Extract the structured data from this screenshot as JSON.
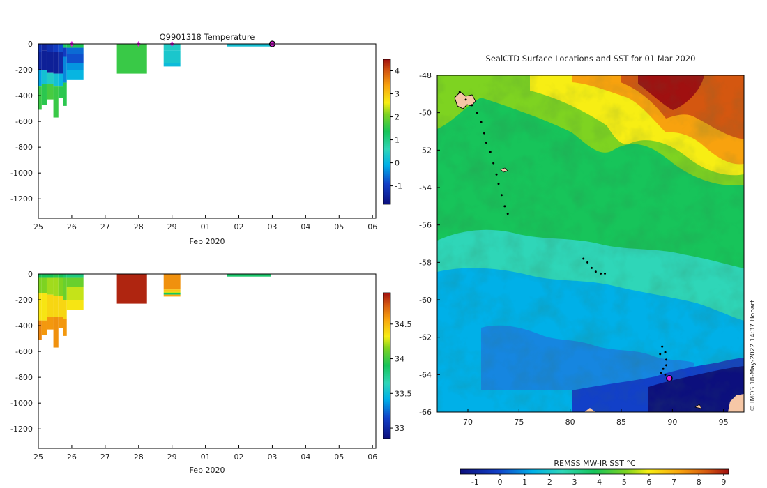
{
  "chart_data": [
    {
      "type": "heatmap",
      "name": "temperature-section",
      "title": "Q9901318  Temperature",
      "xlabel": "Feb 2020",
      "x_ticks": [
        "25",
        "26",
        "27",
        "28",
        "29",
        "01",
        "02",
        "03",
        "04",
        "05",
        "06"
      ],
      "xlim": [
        25,
        35.1
      ],
      "y_ticks": [
        "0",
        "-200",
        "-400",
        "-600",
        "-800",
        "-1000",
        "-1200"
      ],
      "ylim": [
        -1350,
        0
      ],
      "colorbar": {
        "ticks": [
          "-1",
          "0",
          "1",
          "2",
          "3",
          "4"
        ],
        "range": [
          -1.8,
          4.5
        ]
      },
      "profile_markers": [
        26.0,
        28.0,
        29.0
      ],
      "last_position": 32.0,
      "profiles": [
        {
          "x0": 25.0,
          "x1": 25.1,
          "depth": 510,
          "layers": [
            [
              0,
              -1.2
            ],
            [
              60,
              -1.4
            ],
            [
              200,
              -0.2
            ],
            [
              330,
              1.6
            ]
          ]
        },
        {
          "x0": 25.1,
          "x1": 25.25,
          "depth": 470,
          "layers": [
            [
              0,
              -1.4
            ],
            [
              50,
              -1.5
            ],
            [
              200,
              0.2
            ],
            [
              310,
              1.5
            ]
          ]
        },
        {
          "x0": 25.25,
          "x1": 25.45,
          "depth": 430,
          "layers": [
            [
              0,
              -1.2
            ],
            [
              60,
              -1.5
            ],
            [
              220,
              0.4
            ],
            [
              310,
              1.7
            ]
          ]
        },
        {
          "x0": 25.45,
          "x1": 25.6,
          "depth": 570,
          "layers": [
            [
              0,
              -1.0
            ],
            [
              60,
              -1.5
            ],
            [
              230,
              0.2
            ],
            [
              330,
              1.6
            ]
          ]
        },
        {
          "x0": 25.6,
          "x1": 25.75,
          "depth": 420,
          "layers": [
            [
              0,
              -0.8
            ],
            [
              60,
              -1.3
            ],
            [
              230,
              0.0
            ],
            [
              330,
              1.5
            ]
          ]
        },
        {
          "x0": 25.75,
          "x1": 25.85,
          "depth": 480,
          "layers": [
            [
              0,
              1.2
            ],
            [
              30,
              -1.0
            ],
            [
              100,
              -0.4
            ],
            [
              300,
              1.5
            ]
          ]
        },
        {
          "x0": 25.85,
          "x1": 26.35,
          "depth": 280,
          "layers": [
            [
              0,
              1.4
            ],
            [
              30,
              -0.6
            ],
            [
              80,
              -0.8
            ],
            [
              150,
              -0.3
            ],
            [
              200,
              0.0
            ]
          ]
        },
        {
          "x0": 27.35,
          "x1": 28.25,
          "depth": 230,
          "layers": [
            [
              0,
              1.6
            ]
          ]
        },
        {
          "x0": 28.75,
          "x1": 29.25,
          "depth": 175,
          "layers": [
            [
              0,
              0.4
            ],
            [
              50,
              0.3
            ],
            [
              150,
              0.1
            ]
          ]
        },
        {
          "x0": 30.65,
          "x1": 31.95,
          "depth": 20,
          "layers": [
            [
              0,
              0.2
            ]
          ]
        }
      ]
    },
    {
      "type": "heatmap",
      "name": "salinity-section",
      "title": "",
      "xlabel": "Feb 2020",
      "x_ticks": [
        "25",
        "26",
        "27",
        "28",
        "29",
        "01",
        "02",
        "03",
        "04",
        "05",
        "06"
      ],
      "xlim": [
        25,
        35.1
      ],
      "y_ticks": [
        "0",
        "-200",
        "-400",
        "-600",
        "-800",
        "-1000",
        "-1200"
      ],
      "ylim": [
        -1350,
        0
      ],
      "colorbar": {
        "ticks": [
          "33",
          "33.5",
          "34",
          "34.5"
        ],
        "range": [
          32.85,
          34.95
        ]
      },
      "profiles": [
        {
          "x0": 25.0,
          "x1": 25.1,
          "depth": 510,
          "layers": [
            [
              0,
              33.9
            ],
            [
              30,
              34.15
            ],
            [
              150,
              34.35
            ],
            [
              360,
              34.65
            ]
          ]
        },
        {
          "x0": 25.1,
          "x1": 25.25,
          "depth": 470,
          "layers": [
            [
              0,
              33.9
            ],
            [
              30,
              34.15
            ],
            [
              150,
              34.35
            ],
            [
              360,
              34.6
            ]
          ]
        },
        {
          "x0": 25.25,
          "x1": 25.45,
          "depth": 430,
          "layers": [
            [
              0,
              33.9
            ],
            [
              30,
              34.2
            ],
            [
              160,
              34.4
            ],
            [
              330,
              34.6
            ]
          ]
        },
        {
          "x0": 25.45,
          "x1": 25.6,
          "depth": 570,
          "layers": [
            [
              0,
              33.95
            ],
            [
              30,
              34.2
            ],
            [
              170,
              34.4
            ],
            [
              330,
              34.62
            ]
          ]
        },
        {
          "x0": 25.6,
          "x1": 25.75,
          "depth": 420,
          "layers": [
            [
              0,
              33.9
            ],
            [
              30,
              34.15
            ],
            [
              170,
              34.4
            ],
            [
              330,
              34.6
            ]
          ]
        },
        {
          "x0": 25.75,
          "x1": 25.85,
          "depth": 480,
          "layers": [
            [
              0,
              33.85
            ],
            [
              30,
              34.1
            ],
            [
              200,
              34.4
            ],
            [
              350,
              34.6
            ]
          ]
        },
        {
          "x0": 25.85,
          "x1": 26.35,
          "depth": 280,
          "layers": [
            [
              0,
              33.8
            ],
            [
              30,
              34.1
            ],
            [
              100,
              34.25
            ],
            [
              200,
              34.35
            ]
          ]
        },
        {
          "x0": 27.35,
          "x1": 28.25,
          "depth": 230,
          "layers": [
            [
              0,
              34.9
            ]
          ]
        },
        {
          "x0": 28.75,
          "x1": 29.25,
          "depth": 175,
          "layers": [
            [
              0,
              34.62
            ],
            [
              120,
              34.45
            ],
            [
              140,
              34.25
            ],
            [
              150,
              33.9
            ],
            [
              160,
              34.55
            ]
          ]
        },
        {
          "x0": 30.65,
          "x1": 31.95,
          "depth": 20,
          "layers": [
            [
              0,
              33.85
            ]
          ]
        }
      ]
    },
    {
      "type": "heatmap",
      "name": "sst-map",
      "title": "SealCTD Surface Locations and SST for 01 Mar 2020",
      "x_ticks": [
        "70",
        "75",
        "80",
        "85",
        "90",
        "95"
      ],
      "xlim": [
        67,
        97
      ],
      "y_ticks": [
        "-48",
        "-50",
        "-52",
        "-54",
        "-56",
        "-58",
        "-60",
        "-62",
        "-64",
        "-66"
      ],
      "ylim": [
        -66,
        -48
      ],
      "colorbar": {
        "label": "REMSS MW-IR SST °C",
        "ticks": [
          "-1",
          "0",
          "1",
          "2",
          "3",
          "4",
          "5",
          "6",
          "7",
          "8",
          "9"
        ],
        "range": [
          -1.6,
          9.2
        ]
      },
      "credit": "© IMOS 18-May-2022 14:37 Hobart",
      "track": [
        [
          69.2,
          -48.9
        ],
        [
          69.8,
          -49.3
        ],
        [
          70.4,
          -49.6
        ],
        [
          70.9,
          -50.0
        ],
        [
          71.3,
          -50.5
        ],
        [
          71.6,
          -51.1
        ],
        [
          71.8,
          -51.6
        ],
        [
          72.2,
          -52.1
        ],
        [
          72.5,
          -52.7
        ],
        [
          72.8,
          -53.3
        ],
        [
          73.0,
          -53.8
        ],
        [
          73.3,
          -54.4
        ],
        [
          73.6,
          -55.0
        ],
        [
          73.9,
          -55.4
        ],
        [
          81.3,
          -57.8
        ],
        [
          81.7,
          -58.0
        ],
        [
          82.1,
          -58.3
        ],
        [
          82.5,
          -58.5
        ],
        [
          83.0,
          -58.6
        ],
        [
          83.4,
          -58.6
        ],
        [
          88.8,
          -62.9
        ],
        [
          89.0,
          -62.5
        ],
        [
          89.3,
          -62.8
        ],
        [
          89.4,
          -63.2
        ],
        [
          89.4,
          -63.5
        ],
        [
          89.1,
          -63.7
        ],
        [
          88.9,
          -63.9
        ],
        [
          89.3,
          -64.0
        ],
        [
          89.6,
          -64.1
        ]
      ],
      "latest_position": [
        89.7,
        -64.2
      ]
    }
  ]
}
